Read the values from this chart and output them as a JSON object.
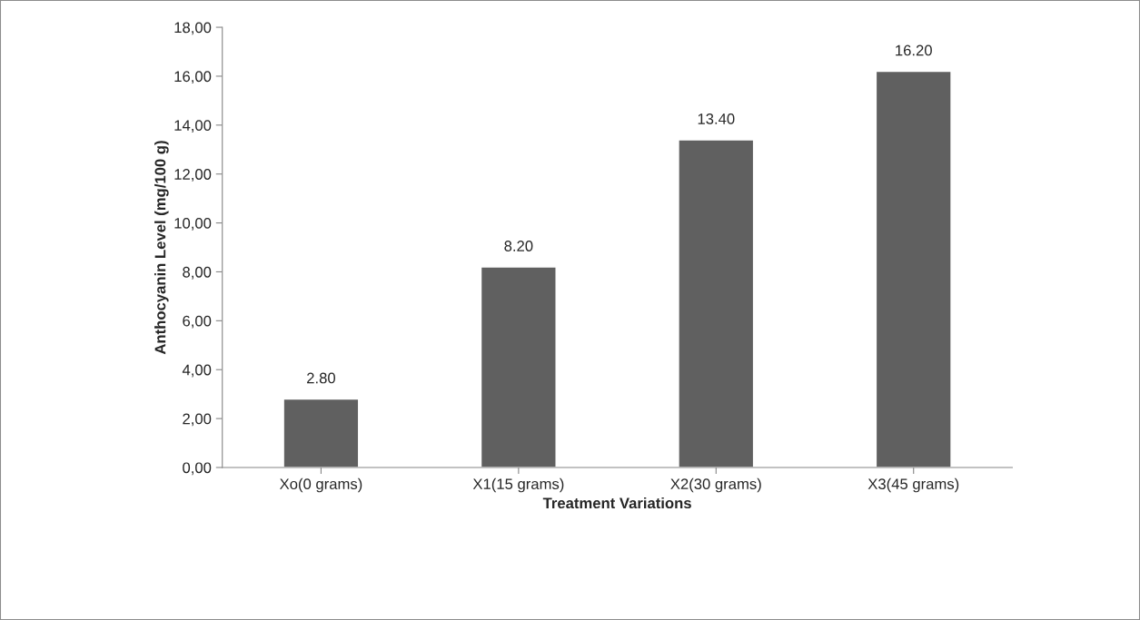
{
  "chart_data": {
    "type": "bar",
    "xlabel": "Treatment Variations",
    "ylabel": "Anthocyanin Level (mg/100 g)",
    "categories": [
      "Xo(0 grams)",
      "X1(15 grams)",
      "X2(30 grams)",
      "X3(45 grams)"
    ],
    "values": [
      2.8,
      8.2,
      13.4,
      16.2
    ],
    "value_labels": [
      "2.80",
      "8.20",
      "13.40",
      "16.20"
    ],
    "color": "#606060",
    "ylim": [
      0,
      18
    ],
    "yticks": [
      {
        "value": 0,
        "label": "0,00"
      },
      {
        "value": 2,
        "label": "2,00"
      },
      {
        "value": 4,
        "label": "4,00"
      },
      {
        "value": 6,
        "label": "6,00"
      },
      {
        "value": 8,
        "label": "8,00"
      },
      {
        "value": 10,
        "label": "10,00"
      },
      {
        "value": 12,
        "label": "12,00"
      },
      {
        "value": 14,
        "label": "14,00"
      },
      {
        "value": 16,
        "label": "16,00"
      },
      {
        "value": 18,
        "label": "18,00"
      }
    ],
    "grid": false,
    "legend": false
  }
}
